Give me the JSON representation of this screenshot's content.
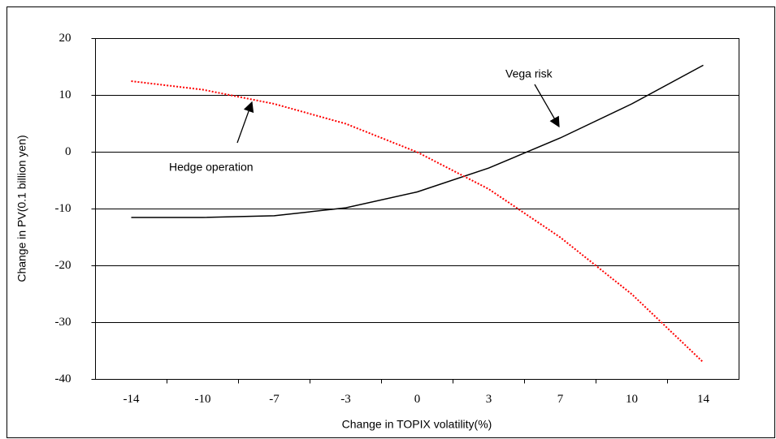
{
  "chart_data": {
    "type": "line",
    "x_label": "Change in TOPIX volatility(%)",
    "y_label": "Change in PV(0.1 billion yen)",
    "categories": [
      "-14",
      "-10",
      "-7",
      "-3",
      "0",
      "3",
      "7",
      "10",
      "14"
    ],
    "series": [
      {
        "name": "Vega risk",
        "color": "#000000",
        "dash": "solid",
        "values": [
          -11.5,
          -11.5,
          -11.2,
          -9.8,
          -7,
          -2.8,
          2.5,
          8.5,
          15.3
        ]
      },
      {
        "name": "Hedge operation",
        "color": "#ff0000",
        "dash": "dotted",
        "values": [
          12.5,
          11,
          8.5,
          5,
          0,
          -6.5,
          -15,
          -25,
          -37
        ]
      }
    ],
    "ylim": [
      -40,
      20
    ],
    "yticks": [
      -40,
      -30,
      -20,
      -10,
      0,
      10,
      20
    ],
    "grid": true
  }
}
